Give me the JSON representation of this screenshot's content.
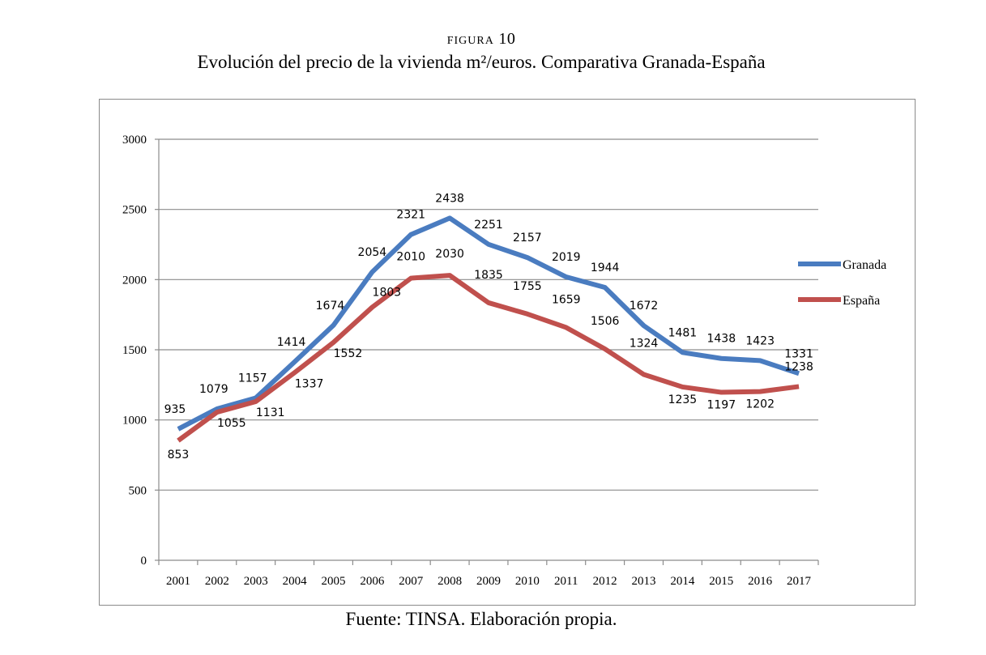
{
  "figure": {
    "label_prefix": "FIGURA",
    "label_number": "10",
    "title": "Evolución del precio de la vivienda m²/euros. Comparativa Granada-España",
    "source": "Fuente: TINSA. Elaboración propia."
  },
  "chart_data": {
    "type": "line",
    "title": "",
    "xlabel": "",
    "ylabel": "",
    "ylim": [
      0,
      3000
    ],
    "yticks": [
      0,
      500,
      1000,
      1500,
      2000,
      2500,
      3000
    ],
    "grid": true,
    "legend": "right",
    "categories": [
      "2001",
      "2002",
      "2003",
      "2004",
      "2005",
      "2006",
      "2007",
      "2008",
      "2009",
      "2010",
      "2011",
      "2012",
      "2013",
      "2014",
      "2015",
      "2016",
      "2017"
    ],
    "series": [
      {
        "name": "Granada",
        "color": "#4a7cc0",
        "values": [
          935,
          1079,
          1157,
          1414,
          1674,
          2054,
          2321,
          2438,
          2251,
          2157,
          2019,
          1944,
          1672,
          1481,
          1438,
          1423,
          1331
        ]
      },
      {
        "name": "España",
        "color": "#c0504d",
        "values": [
          853,
          1055,
          1131,
          1337,
          1552,
          1803,
          2010,
          2030,
          1835,
          1755,
          1659,
          1506,
          1324,
          1235,
          1197,
          1202,
          1238
        ]
      }
    ]
  }
}
